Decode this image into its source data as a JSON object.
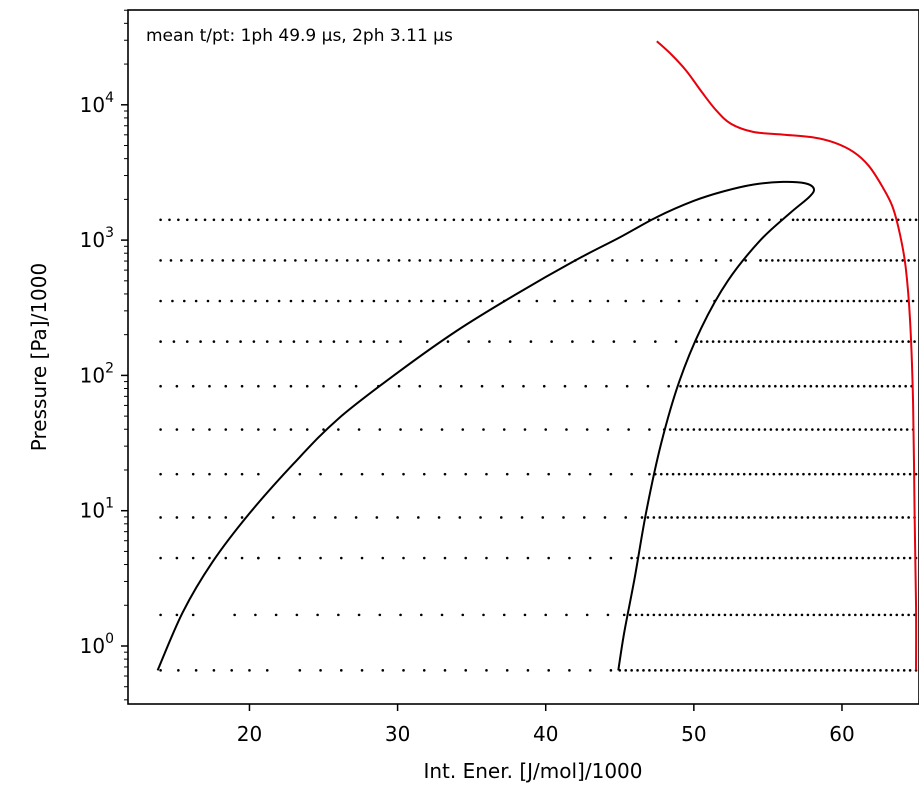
{
  "chart_data": {
    "type": "scatter",
    "title": "",
    "xlabel": "Int. Ener. [J/mol]/1000",
    "ylabel": "Pressure [Pa]/1000",
    "xlim": [
      11.8,
      65.2
    ],
    "ylim_log10": [
      -0.43,
      2.98
    ],
    "yscale": "log",
    "grid": false,
    "x_ticks": [
      20,
      30,
      40,
      50,
      60
    ],
    "x_tick_labels": [
      "20",
      "30",
      "40",
      "50",
      "60"
    ],
    "y_ticks_log10": [
      0,
      1,
      2,
      3,
      4
    ],
    "y_tick_labels": [
      {
        "base": "10",
        "exp": "0"
      },
      {
        "base": "10",
        "exp": "1"
      },
      {
        "base": "10",
        "exp": "2"
      },
      {
        "base": "10",
        "exp": "3"
      },
      {
        "base": "10",
        "exp": "4"
      }
    ],
    "annotation": "mean t/pt: 1ph 49.9 µs, 2ph 3.11 µs",
    "colors": {
      "curves": "#000000",
      "boundary": "#e8000b",
      "points": "#000000"
    },
    "series": [
      {
        "kind": "curve",
        "color": "#000000",
        "points": [
          [
            13.8,
            -0.18
          ],
          [
            15.5,
            0.25
          ],
          [
            17.5,
            0.62
          ],
          [
            20,
            0.98
          ],
          [
            23,
            1.35
          ],
          [
            26,
            1.68
          ],
          [
            30,
            2.02
          ],
          [
            34,
            2.33
          ],
          [
            38,
            2.6
          ],
          [
            42,
            2.85
          ],
          [
            45,
            3.02
          ],
          [
            47.5,
            3.17
          ],
          [
            50,
            3.29
          ],
          [
            52,
            3.36
          ],
          [
            54,
            3.41
          ],
          [
            56,
            3.43
          ],
          [
            57.5,
            3.42
          ],
          [
            58.1,
            3.38
          ],
          [
            57.8,
            3.32
          ],
          [
            56.5,
            3.2
          ],
          [
            54.5,
            3.0
          ],
          [
            52.3,
            2.7
          ],
          [
            50.5,
            2.35
          ],
          [
            49,
            1.95
          ],
          [
            47.8,
            1.5
          ],
          [
            46.8,
            1.0
          ],
          [
            46,
            0.5
          ],
          [
            45.3,
            0.1
          ],
          [
            44.9,
            -0.18
          ]
        ]
      },
      {
        "kind": "curve",
        "color": "#e8000b",
        "points": [
          [
            47.5,
            4.47
          ],
          [
            48.5,
            4.37
          ],
          [
            49.5,
            4.25
          ],
          [
            50.5,
            4.1
          ],
          [
            51.5,
            3.96
          ],
          [
            52.5,
            3.86
          ],
          [
            54,
            3.8
          ],
          [
            56,
            3.78
          ],
          [
            58,
            3.76
          ],
          [
            59.5,
            3.72
          ],
          [
            60.8,
            3.65
          ],
          [
            61.8,
            3.55
          ],
          [
            62.7,
            3.4
          ],
          [
            63.4,
            3.25
          ],
          [
            63.9,
            3.05
          ],
          [
            64.3,
            2.8
          ],
          [
            64.6,
            2.4
          ],
          [
            64.8,
            1.8
          ],
          [
            64.9,
            1.0
          ],
          [
            65.0,
            0.3
          ],
          [
            65.0,
            -0.18
          ]
        ]
      },
      {
        "kind": "dot-grid",
        "color": "#000000",
        "rows": [
          {
            "y": -0.18,
            "x": [
              [
                14,
                21.6,
                1.2
              ],
              [
                23.4,
                44.4,
                1.4
              ],
              [
                45,
                65,
                0.4
              ]
            ]
          },
          {
            "y": 0.23,
            "x": [
              [
                14,
                17.2,
                1.1
              ],
              [
                19,
                44.4,
                1.4
              ],
              [
                45.3,
                65,
                0.4
              ]
            ]
          },
          {
            "y": 0.65,
            "x": [
              [
                14,
                21.6,
                1.1
              ],
              [
                20.6,
                45.3,
                1.4
              ],
              [
                45.8,
                65,
                0.4
              ]
            ]
          },
          {
            "y": 0.95,
            "x": [
              [
                14,
                19.8,
                1.1
              ],
              [
                21.6,
                46.3,
                1.4
              ],
              [
                46.5,
                65,
                0.4
              ]
            ]
          },
          {
            "y": 1.27,
            "x": [
              [
                14,
                21,
                1.1
              ],
              [
                23.4,
                46.8,
                1.4
              ],
              [
                47,
                65,
                0.4
              ]
            ]
          },
          {
            "y": 1.6,
            "x": [
              [
                14,
                25,
                1.1
              ],
              [
                26,
                48,
                1.4
              ],
              [
                48,
                65,
                0.4
              ]
            ]
          },
          {
            "y": 1.92,
            "x": [
              [
                14,
                27.3,
                1.1
              ],
              [
                28.7,
                49,
                1.4
              ],
              [
                49.1,
                65,
                0.4
              ]
            ]
          },
          {
            "y": 2.25,
            "x": [
              [
                14,
                31,
                0.9
              ],
              [
                32,
                50.4,
                1.4
              ],
              [
                50.5,
                65,
                0.4
              ]
            ]
          },
          {
            "y": 2.55,
            "x": [
              [
                14,
                37.5,
                0.8
              ],
              [
                38.2,
                52,
                1.2
              ],
              [
                52,
                65,
                0.4
              ]
            ]
          },
          {
            "y": 2.85,
            "x": [
              [
                14,
                43,
                0.7
              ],
              [
                43.5,
                54.5,
                1.0
              ],
              [
                54.5,
                65,
                0.4
              ]
            ]
          },
          {
            "y": 3.15,
            "x": [
              [
                14,
                49,
                0.6
              ],
              [
                49.5,
                57,
                0.8
              ],
              [
                57,
                65,
                0.4
              ]
            ]
          }
        ]
      }
    ]
  }
}
